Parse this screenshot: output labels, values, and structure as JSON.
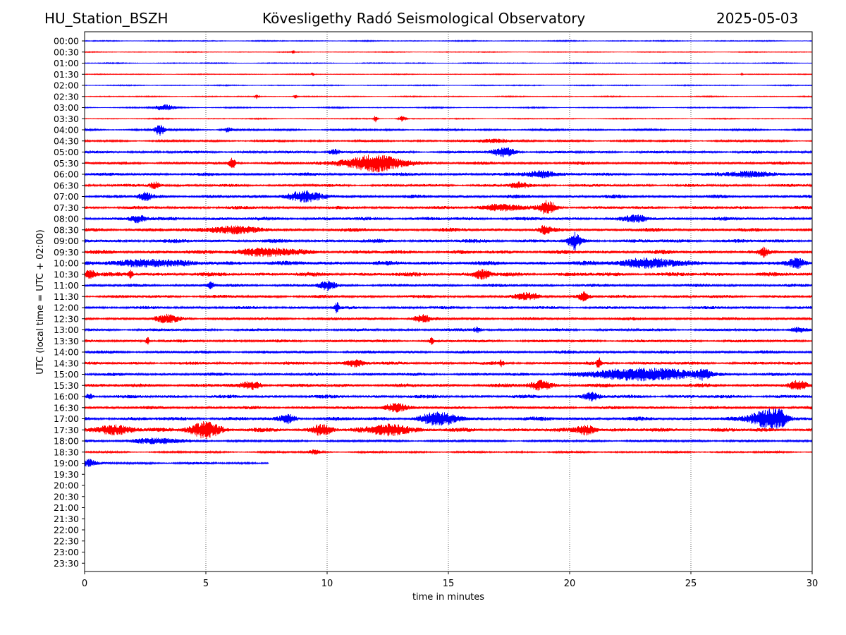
{
  "header": {
    "station": "HU_Station_BSZH",
    "observatory": "Kövesligethy Radó Seismological Observatory",
    "date": "2025-05-03"
  },
  "chart_data": {
    "type": "line",
    "title": "Kövesligethy Radó Seismological Observatory",
    "xlabel": "time in minutes",
    "ylabel": "UTC (local time = UTC + 02:00)",
    "xlim": [
      0,
      30
    ],
    "xticks": [
      0,
      5,
      10,
      15,
      20,
      25,
      30
    ],
    "grid": "vertical dotted at each x tick",
    "row_labels": [
      "00:00",
      "00:30",
      "01:00",
      "01:30",
      "02:00",
      "02:30",
      "03:00",
      "03:30",
      "04:00",
      "04:30",
      "05:00",
      "05:30",
      "06:00",
      "06:30",
      "07:00",
      "07:30",
      "08:00",
      "08:30",
      "09:00",
      "09:30",
      "10:00",
      "10:30",
      "11:00",
      "11:30",
      "12:00",
      "12:30",
      "13:00",
      "13:30",
      "14:00",
      "14:30",
      "15:00",
      "15:30",
      "16:00",
      "16:30",
      "17:00",
      "17:30",
      "18:00",
      "18:30",
      "19:00",
      "19:30",
      "20:00",
      "20:30",
      "21:00",
      "21:30",
      "22:00",
      "22:30",
      "23:00",
      "23:30"
    ],
    "trace_colors": [
      "#0000ff",
      "#ff0000"
    ],
    "rows_with_data": 39,
    "last_row_end_minute": 7.6,
    "noise_amplitude": [
      0.6,
      0.5,
      0.6,
      0.5,
      0.6,
      0.6,
      0.7,
      0.6,
      1.2,
      1.3,
      1.7,
      2.0,
      2.0,
      1.8,
      2.3,
      2.0,
      2.3,
      2.4,
      2.4,
      2.5,
      2.8,
      2.6,
      2.0,
      2.0,
      1.9,
      2.0,
      1.8,
      1.8,
      2.0,
      2.0,
      2.0,
      2.4,
      2.2,
      2.0,
      2.5,
      2.6,
      1.6,
      1.2,
      1.5
    ],
    "events": [
      {
        "row": "00:30",
        "x": 8.6,
        "amp": 3,
        "dur": 0.05
      },
      {
        "row": "01:30",
        "x": 9.4,
        "amp": 3,
        "dur": 0.05
      },
      {
        "row": "01:30",
        "x": 27.1,
        "amp": 2,
        "dur": 0.05
      },
      {
        "row": "02:30",
        "x": 7.1,
        "amp": 3,
        "dur": 0.1
      },
      {
        "row": "02:30",
        "x": 8.7,
        "amp": 3,
        "dur": 0.08
      },
      {
        "row": "03:00",
        "x": 3.3,
        "amp": 4,
        "dur": 0.6
      },
      {
        "row": "03:30",
        "x": 12.0,
        "amp": 5,
        "dur": 0.1
      },
      {
        "row": "03:30",
        "x": 13.1,
        "amp": 4,
        "dur": 0.2
      },
      {
        "row": "04:00",
        "x": 3.1,
        "amp": 8,
        "dur": 0.25
      },
      {
        "row": "04:00",
        "x": 5.9,
        "amp": 3,
        "dur": 0.3
      },
      {
        "row": "04:30",
        "x": 17.0,
        "amp": 3,
        "dur": 0.8
      },
      {
        "row": "05:00",
        "x": 10.3,
        "amp": 4,
        "dur": 0.3
      },
      {
        "row": "05:00",
        "x": 17.3,
        "amp": 6,
        "dur": 0.6
      },
      {
        "row": "05:30",
        "x": 6.1,
        "amp": 8,
        "dur": 0.15
      },
      {
        "row": "05:30",
        "x": 11.9,
        "amp": 11,
        "dur": 1.6
      },
      {
        "row": "06:00",
        "x": 18.8,
        "amp": 5,
        "dur": 0.8
      },
      {
        "row": "06:00",
        "x": 27.2,
        "amp": 4,
        "dur": 1.2
      },
      {
        "row": "06:30",
        "x": 2.9,
        "amp": 5,
        "dur": 0.3
      },
      {
        "row": "06:30",
        "x": 17.9,
        "amp": 4,
        "dur": 0.5
      },
      {
        "row": "07:00",
        "x": 2.5,
        "amp": 6,
        "dur": 0.3
      },
      {
        "row": "07:00",
        "x": 9.0,
        "amp": 7,
        "dur": 0.9
      },
      {
        "row": "07:30",
        "x": 19.1,
        "amp": 9,
        "dur": 0.4
      },
      {
        "row": "07:30",
        "x": 17.2,
        "amp": 4,
        "dur": 1.2
      },
      {
        "row": "08:00",
        "x": 2.2,
        "amp": 5,
        "dur": 0.4
      },
      {
        "row": "08:00",
        "x": 22.8,
        "amp": 4,
        "dur": 0.6
      },
      {
        "row": "08:30",
        "x": 6.0,
        "amp": 5,
        "dur": 1.2
      },
      {
        "row": "08:30",
        "x": 19.0,
        "amp": 5,
        "dur": 0.3
      },
      {
        "row": "09:00",
        "x": 20.2,
        "amp": 11,
        "dur": 0.3
      },
      {
        "row": "09:30",
        "x": 7.5,
        "amp": 5,
        "dur": 1.6
      },
      {
        "row": "09:30",
        "x": 28.0,
        "amp": 5,
        "dur": 0.2
      },
      {
        "row": "10:00",
        "x": 2.8,
        "amp": 5,
        "dur": 1.5
      },
      {
        "row": "10:00",
        "x": 23.2,
        "amp": 6,
        "dur": 1.5
      },
      {
        "row": "10:00",
        "x": 29.4,
        "amp": 6,
        "dur": 0.4
      },
      {
        "row": "10:30",
        "x": 0.2,
        "amp": 6,
        "dur": 0.3
      },
      {
        "row": "10:30",
        "x": 16.4,
        "amp": 6,
        "dur": 0.4
      },
      {
        "row": "10:30",
        "x": 1.9,
        "amp": 5,
        "dur": 0.1
      },
      {
        "row": "11:00",
        "x": 10.0,
        "amp": 6,
        "dur": 0.4
      },
      {
        "row": "11:00",
        "x": 5.2,
        "amp": 4,
        "dur": 0.2
      },
      {
        "row": "11:30",
        "x": 20.6,
        "amp": 6,
        "dur": 0.3
      },
      {
        "row": "11:30",
        "x": 18.3,
        "amp": 4,
        "dur": 0.6
      },
      {
        "row": "12:00",
        "x": 10.4,
        "amp": 8,
        "dur": 0.1
      },
      {
        "row": "12:30",
        "x": 3.4,
        "amp": 5,
        "dur": 0.6
      },
      {
        "row": "12:30",
        "x": 13.9,
        "amp": 5,
        "dur": 0.4
      },
      {
        "row": "13:00",
        "x": 16.2,
        "amp": 4,
        "dur": 0.2
      },
      {
        "row": "13:00",
        "x": 29.4,
        "amp": 4,
        "dur": 0.4
      },
      {
        "row": "13:30",
        "x": 2.6,
        "amp": 5,
        "dur": 0.1
      },
      {
        "row": "13:30",
        "x": 14.3,
        "amp": 5,
        "dur": 0.1
      },
      {
        "row": "14:30",
        "x": 11.2,
        "amp": 5,
        "dur": 0.5
      },
      {
        "row": "14:30",
        "x": 21.2,
        "amp": 8,
        "dur": 0.1
      },
      {
        "row": "14:30",
        "x": 17.2,
        "amp": 4,
        "dur": 0.1
      },
      {
        "row": "15:00",
        "x": 23.0,
        "amp": 9,
        "dur": 2.5
      },
      {
        "row": "15:00",
        "x": 25.5,
        "amp": 6,
        "dur": 0.4
      },
      {
        "row": "15:30",
        "x": 18.8,
        "amp": 6,
        "dur": 0.6
      },
      {
        "row": "15:30",
        "x": 29.4,
        "amp": 6,
        "dur": 0.4
      },
      {
        "row": "15:30",
        "x": 6.9,
        "amp": 5,
        "dur": 0.5
      },
      {
        "row": "16:00",
        "x": 20.9,
        "amp": 5,
        "dur": 0.4
      },
      {
        "row": "16:00",
        "x": 0.2,
        "amp": 4,
        "dur": 0.2
      },
      {
        "row": "16:30",
        "x": 12.8,
        "amp": 6,
        "dur": 0.6
      },
      {
        "row": "17:00",
        "x": 14.6,
        "amp": 8,
        "dur": 1.0
      },
      {
        "row": "17:00",
        "x": 8.4,
        "amp": 6,
        "dur": 0.4
      },
      {
        "row": "17:00",
        "x": 28.1,
        "amp": 13,
        "dur": 0.8
      },
      {
        "row": "17:00",
        "x": 28.6,
        "amp": 11,
        "dur": 0.4
      },
      {
        "row": "17:30",
        "x": 5.0,
        "amp": 11,
        "dur": 0.8
      },
      {
        "row": "17:30",
        "x": 9.8,
        "amp": 8,
        "dur": 0.5
      },
      {
        "row": "17:30",
        "x": 12.6,
        "amp": 8,
        "dur": 1.0
      },
      {
        "row": "17:30",
        "x": 20.7,
        "amp": 7,
        "dur": 0.5
      },
      {
        "row": "17:30",
        "x": 1.3,
        "amp": 6,
        "dur": 1.0
      },
      {
        "row": "18:00",
        "x": 2.9,
        "amp": 4,
        "dur": 1.2
      },
      {
        "row": "18:30",
        "x": 9.5,
        "amp": 3,
        "dur": 0.3
      },
      {
        "row": "19:00",
        "x": 0.2,
        "amp": 5,
        "dur": 0.3
      }
    ]
  }
}
